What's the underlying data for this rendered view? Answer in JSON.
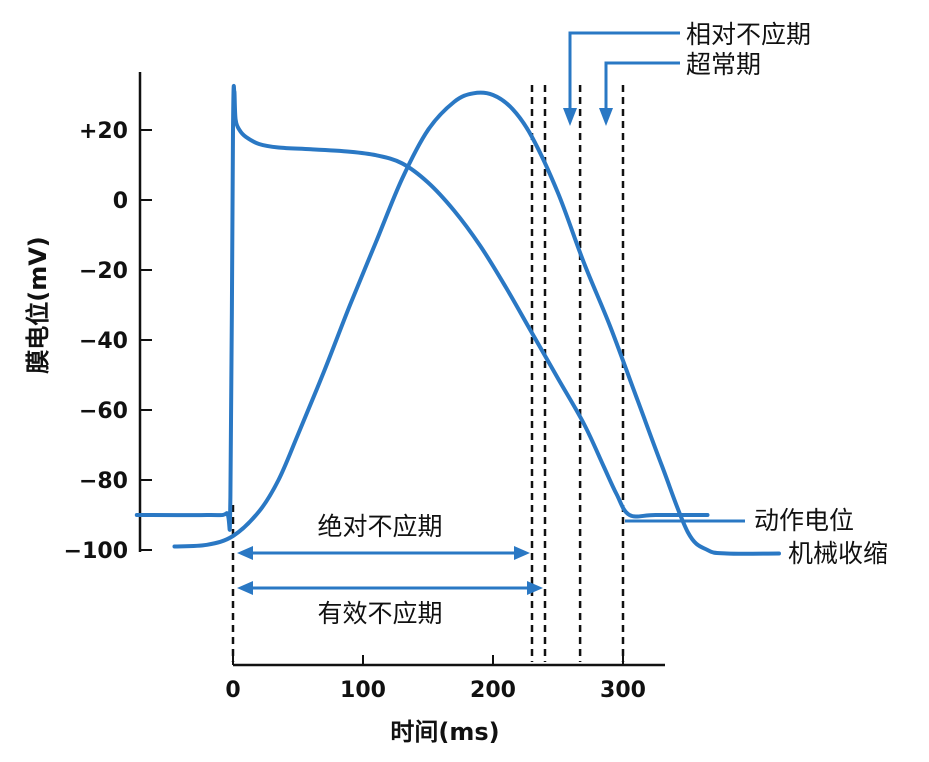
{
  "chart_data": {
    "type": "line",
    "title": "",
    "xlabel": "时间(ms)",
    "ylabel": "膜电位(mV)",
    "xlim": [
      -75,
      335
    ],
    "ylim": [
      -100,
      30
    ],
    "x_ticks": [
      {
        "value": 0,
        "label": "0"
      },
      {
        "value": 100,
        "label": "100"
      },
      {
        "value": 200,
        "label": "200"
      },
      {
        "value": 300,
        "label": "300"
      }
    ],
    "y_ticks": [
      {
        "value": 20,
        "label": "+20"
      },
      {
        "value": 0,
        "label": "0"
      },
      {
        "value": -20,
        "label": "-20"
      },
      {
        "value": -40,
        "label": "-40"
      },
      {
        "value": -60,
        "label": "-60"
      },
      {
        "value": -80,
        "label": "-80"
      },
      {
        "value": -100,
        "label": "-100"
      }
    ],
    "series": [
      {
        "name": "动作电位",
        "color": "#2a78c4",
        "x": [
          -74,
          -20,
          -5,
          -2,
          0,
          1,
          2,
          5,
          10,
          20,
          35,
          60,
          90,
          110,
          130,
          150,
          170,
          190,
          210,
          230,
          250,
          270,
          285,
          295,
          305,
          325,
          365
        ],
        "y": [
          -90,
          -90,
          -89.5,
          -85,
          20,
          31,
          23,
          20,
          18,
          16,
          15,
          14.5,
          13.8,
          12.8,
          10.5,
          5,
          -3,
          -13,
          -25,
          -38,
          -51,
          -64,
          -76,
          -84,
          -90,
          -90,
          -90
        ]
      },
      {
        "name": "机械收缩",
        "color": "#2a78c4",
        "x": [
          -45,
          -20,
          0,
          20,
          35,
          50,
          70,
          90,
          110,
          130,
          150,
          170,
          185,
          200,
          215,
          230,
          250,
          270,
          290,
          310,
          330,
          350,
          365,
          380,
          420
        ],
        "y": [
          -99,
          -98.5,
          -96,
          -89,
          -80,
          -67,
          -49,
          -30,
          -12,
          6,
          20,
          28,
          30.5,
          30,
          26,
          18,
          2,
          -18,
          -36,
          -56,
          -76,
          -95,
          -100,
          -101,
          -101
        ]
      }
    ],
    "intervals": [
      {
        "label": "绝对不应期",
        "start": 0,
        "end": 230
      },
      {
        "label": "有效不应期",
        "start": 0,
        "end": 240
      }
    ],
    "markers": [
      {
        "x": 0,
        "label": ""
      },
      {
        "x": 230,
        "label": ""
      },
      {
        "x": 240,
        "label": ""
      },
      {
        "x": 267,
        "label": ""
      },
      {
        "x": 300,
        "label": ""
      }
    ],
    "annotations": [
      {
        "text": "相对不应期"
      },
      {
        "text": "超常期"
      }
    ],
    "legend_placement": "right, next to curve ends",
    "grid": false
  }
}
